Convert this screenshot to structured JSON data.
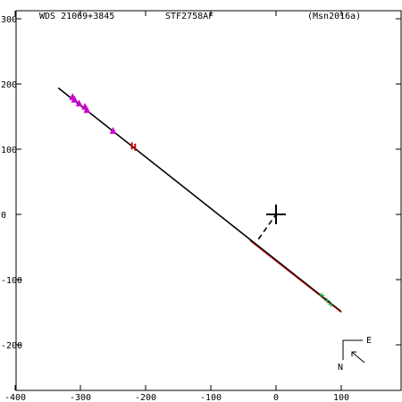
{
  "header": {
    "left": "WDS 21069+3845",
    "center": "STF2758AF",
    "right": "(Msn2016a)"
  },
  "compass": {
    "east_label": "E",
    "north_label": "N"
  },
  "chart_data": {
    "type": "scatter",
    "title": "",
    "xlabel": "",
    "ylabel": "",
    "xlim": [
      -400,
      190
    ],
    "ylim": [
      -265,
      305
    ],
    "x_ticks": [
      -400,
      -300,
      -200,
      -100,
      0,
      100
    ],
    "x_tick_labels": [
      "-400",
      "-300",
      "-200",
      "-100",
      "0",
      "100"
    ],
    "y_ticks": [
      300,
      200,
      100,
      0,
      -100,
      -200
    ],
    "y_tick_labels": [
      "300",
      "200",
      "100",
      "0",
      "-100",
      "-200"
    ],
    "grid": false,
    "primary_marker": {
      "x": 0,
      "y": 0,
      "symbol": "plus"
    },
    "orbit_line": {
      "from": [
        -334,
        194
      ],
      "to": [
        100,
        -149
      ],
      "color": "#000000"
    },
    "orbit_line_red": {
      "from": [
        -40,
        -39
      ],
      "to": [
        100,
        -149
      ],
      "color": "#cc0000"
    },
    "node_line": {
      "from": [
        -27,
        -38
      ],
      "to": [
        0,
        0
      ],
      "style": "dashed"
    },
    "series": [
      {
        "marker": "triangle",
        "color": "#cc00cc",
        "points": [
          {
            "x": -312,
            "y": 180
          },
          {
            "x": -309,
            "y": 176
          },
          {
            "x": -302,
            "y": 170
          },
          {
            "x": -293,
            "y": 165
          },
          {
            "x": -290,
            "y": 160
          },
          {
            "x": -250,
            "y": 128
          }
        ]
      },
      {
        "marker": "bar",
        "color": "#cc0000",
        "points": [
          {
            "x": -221,
            "y": 105
          },
          {
            "x": -216,
            "y": 103
          }
        ]
      },
      {
        "marker": "plus",
        "color": "#00aa44",
        "points": [
          {
            "x": 70,
            "y": -124
          },
          {
            "x": 78,
            "y": -132
          },
          {
            "x": 84,
            "y": -138
          }
        ]
      }
    ]
  }
}
